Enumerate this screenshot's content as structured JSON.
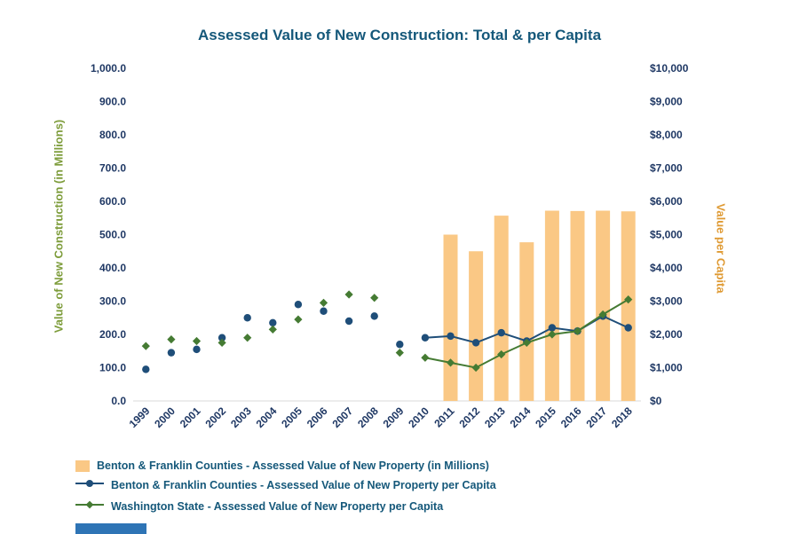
{
  "title": "Assessed Value of New Construction: Total & per Capita",
  "colors": {
    "title_text": "#15587A",
    "tick_label": "#1F3864",
    "axis_line": "#D9D9D9",
    "legend_text": "#15587A",
    "footer_bar": "#2E74B5",
    "background": "#FFFFFF"
  },
  "chart_data": {
    "type": "combo",
    "categories": [
      "1999",
      "2000",
      "2001",
      "2002",
      "2003",
      "2004",
      "2005",
      "2006",
      "2007",
      "2008",
      "2009",
      "2010",
      "2011",
      "2012",
      "2013",
      "2014",
      "2015",
      "2016",
      "2017",
      "2018"
    ],
    "series": [
      {
        "name": "Benton & Franklin Counties - Assessed Value of New Property (in Millions)",
        "type": "bar",
        "axis": "left",
        "color": "#FAC885",
        "values": [
          null,
          null,
          null,
          null,
          null,
          null,
          null,
          null,
          null,
          null,
          null,
          null,
          500,
          450,
          557,
          477,
          572,
          571,
          572,
          570
        ]
      },
      {
        "name": "Benton & Franklin Counties - Assessed Value of New Property per Capita",
        "type": "line",
        "axis": "right",
        "color": "#1F4E79",
        "marker": "circle",
        "line_start_index": 11,
        "values": [
          950,
          1450,
          1550,
          1900,
          2500,
          2350,
          2900,
          2700,
          2400,
          2550,
          1700,
          1900,
          1950,
          1750,
          2050,
          1800,
          2200,
          2100,
          2550,
          2200
        ]
      },
      {
        "name": "Washington State - Assessed Value of New Property per Capita",
        "type": "line",
        "axis": "right",
        "color": "#457B33",
        "marker": "diamond",
        "line_start_index": 11,
        "values": [
          1650,
          1850,
          1800,
          1750,
          1900,
          2150,
          2450,
          2950,
          3200,
          3100,
          1450,
          1300,
          1150,
          1000,
          1400,
          1750,
          2000,
          2100,
          2600,
          3050
        ]
      }
    ],
    "left_axis": {
      "title": "Value of New Construction (in Millions)",
      "color": "#7D9C3A",
      "min": 0,
      "max": 1000,
      "tick_labels": [
        "1,000.0",
        "900.0",
        "800.0",
        "700.0",
        "600.0",
        "500.0",
        "400.0",
        "300.0",
        "200.0",
        "100.0",
        "0.0"
      ]
    },
    "right_axis": {
      "title": "Value per Capita",
      "color": "#DF9A33",
      "min": 0,
      "max": 10000,
      "tick_labels": [
        "$10,000",
        "$9,000",
        "$8,000",
        "$7,000",
        "$6,000",
        "$5,000",
        "$4,000",
        "$3,000",
        "$2,000",
        "$1,000",
        "$0"
      ]
    },
    "legend_position": "bottom-left",
    "grid": false
  }
}
